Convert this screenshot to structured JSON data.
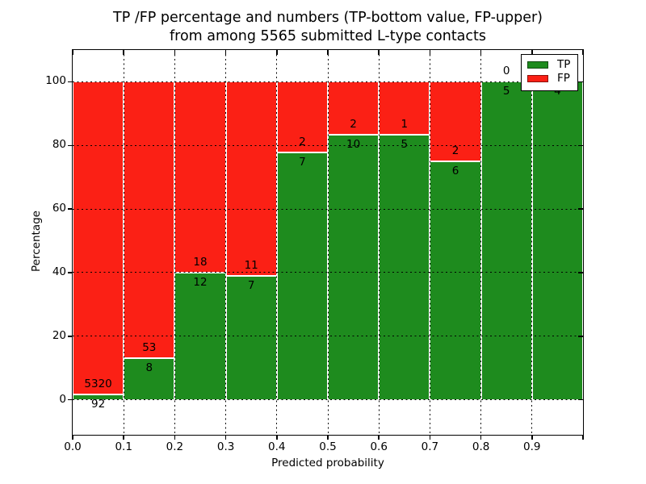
{
  "chart_data": {
    "type": "bar",
    "stacked": true,
    "orientation": "vertical",
    "title_line1": "TP /FP percentage and numbers (TP-bottom value, FP-upper)",
    "title_line2": "from among 5565 submitted L-type contacts",
    "xlabel": "Predicted probability",
    "ylabel": "Percentage",
    "x_ticks": [
      "0.0",
      "0.1",
      "0.2",
      "0.3",
      "0.4",
      "0.5",
      "0.6",
      "0.7",
      "0.8",
      "0.9"
    ],
    "y_ticks": [
      "0",
      "20",
      "40",
      "60",
      "80",
      "100"
    ],
    "xlim": [
      0,
      1
    ],
    "ylim": [
      -11,
      110
    ],
    "grid": true,
    "legend_position": "upper-right",
    "legend": [
      {
        "label": "TP",
        "color": "#1e8b1e"
      },
      {
        "label": "FP",
        "color": "#fb2015"
      }
    ],
    "bins": [
      {
        "range": [
          0.0,
          0.1
        ],
        "tp": 92,
        "fp": 5320,
        "tp_label": "92",
        "fp_label": "5320"
      },
      {
        "range": [
          0.1,
          0.2
        ],
        "tp": 8,
        "fp": 53,
        "tp_label": "8",
        "fp_label": "53"
      },
      {
        "range": [
          0.2,
          0.3
        ],
        "tp": 12,
        "fp": 18,
        "tp_label": "12",
        "fp_label": "18"
      },
      {
        "range": [
          0.3,
          0.4
        ],
        "tp": 7,
        "fp": 11,
        "tp_label": "7",
        "fp_label": "11"
      },
      {
        "range": [
          0.4,
          0.5
        ],
        "tp": 7,
        "fp": 2,
        "tp_label": "7",
        "fp_label": "2"
      },
      {
        "range": [
          0.5,
          0.6
        ],
        "tp": 10,
        "fp": 2,
        "tp_label": "10",
        "fp_label": "2"
      },
      {
        "range": [
          0.6,
          0.7
        ],
        "tp": 5,
        "fp": 1,
        "tp_label": "5",
        "fp_label": "1"
      },
      {
        "range": [
          0.7,
          0.8
        ],
        "tp": 6,
        "fp": 2,
        "tp_label": "6",
        "fp_label": "2"
      },
      {
        "range": [
          0.8,
          0.9
        ],
        "tp": 5,
        "fp": 0,
        "tp_label": "5",
        "fp_label": "0"
      },
      {
        "range": [
          0.9,
          1.0
        ],
        "tp": 4,
        "fp": 0,
        "tp_label": "4",
        "fp_label": ""
      }
    ]
  }
}
